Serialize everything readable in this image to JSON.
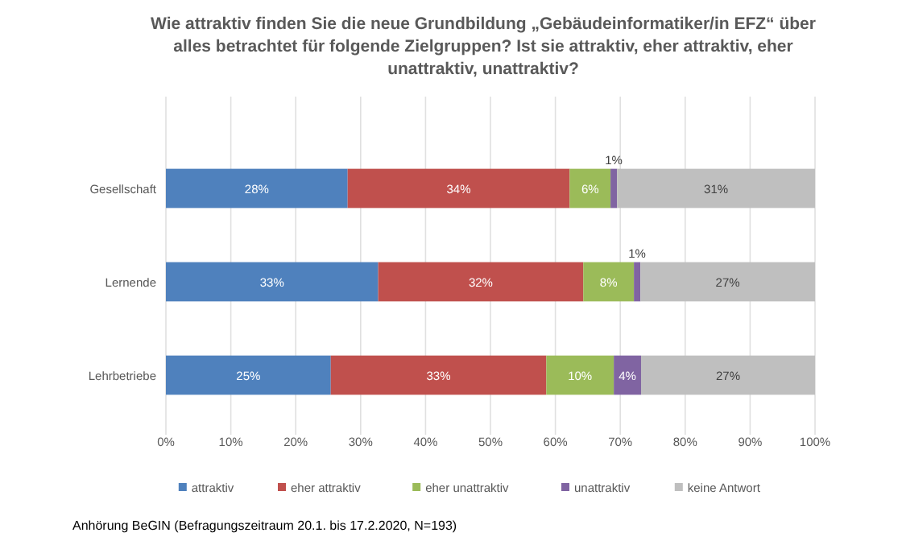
{
  "chart_data": {
    "type": "bar",
    "orientation": "horizontal",
    "stacked": true,
    "title": "Wie attraktiv finden Sie die neue Grundbildung  „Gebäudeinformatiker/in EFZ“ über alles betrachtet für folgende Zielgruppen? Ist sie attraktiv, eher attraktiv, eher unattraktiv, unattraktiv?",
    "categories": [
      "Gesellschaft",
      "Lernende",
      "Lehrbetriebe"
    ],
    "series": [
      {
        "name": "attraktiv",
        "color": "#4f81bd",
        "values": [
          28.0,
          32.7,
          25.4
        ],
        "value_labels": [
          "28%",
          "33%",
          "25%"
        ]
      },
      {
        "name": "eher attraktiv",
        "color": "#c0504d",
        "values": [
          34.2,
          31.6,
          33.2
        ],
        "value_labels": [
          "34%",
          "32%",
          "33%"
        ]
      },
      {
        "name": "eher unattraktiv",
        "color": "#9bbb59",
        "values": [
          6.3,
          7.8,
          10.4
        ],
        "value_labels": [
          "6%",
          "8%",
          "10%"
        ]
      },
      {
        "name": "unattraktiv",
        "color": "#8064a2",
        "values": [
          1.0,
          1.0,
          4.2
        ],
        "value_labels": [
          "1%",
          "1%",
          "4%"
        ]
      },
      {
        "name": "keine Antwort",
        "color": "#bfbfbf",
        "values": [
          30.5,
          26.9,
          26.8
        ],
        "value_labels": [
          "31%",
          "27%",
          "27%"
        ]
      }
    ],
    "xlim": [
      0,
      100
    ],
    "xticks": [
      {
        "value": 0,
        "label": "0%"
      },
      {
        "value": 10,
        "label": "10%"
      },
      {
        "value": 20,
        "label": "20%"
      },
      {
        "value": 30,
        "label": "30%"
      },
      {
        "value": 40,
        "label": "40%"
      },
      {
        "value": 50,
        "label": "50%"
      },
      {
        "value": 60,
        "label": "60%"
      },
      {
        "value": 70,
        "label": "70%"
      },
      {
        "value": 80,
        "label": "80%"
      },
      {
        "value": 90,
        "label": "90%"
      },
      {
        "value": 100,
        "label": "100%"
      }
    ],
    "grid": "x",
    "legend": "bottom",
    "annotations": [
      "Anhörung BeGIN (Befragungszeitraum 20.1. bis 17.2.2020, N=193)"
    ]
  }
}
